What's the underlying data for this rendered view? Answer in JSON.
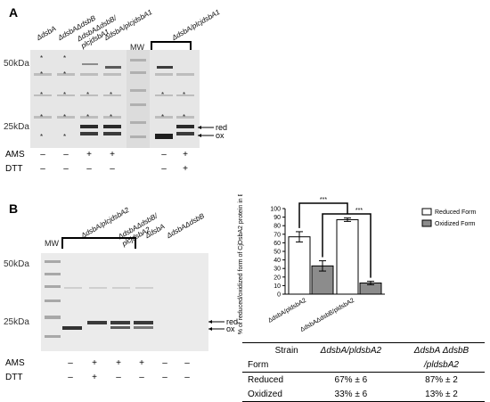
{
  "panel_a": {
    "letter": "A",
    "lanes": [
      "ΔdsbA",
      "ΔdsbAΔdsbB",
      "ΔdsbAΔdsbB/ plcjdsbA1",
      "ΔdsbA/plcjdsbA1",
      "ΔdsbA/plcjdsbA1"
    ],
    "mw_label": "MW",
    "sizes": [
      "50kDa",
      "25kDa"
    ],
    "band_labels": {
      "red": "red",
      "ox": "ox"
    },
    "ams_label": "AMS",
    "dtt_label": "DTT",
    "ams_signs": [
      "–",
      "–",
      "+",
      "+",
      "–",
      "+",
      "+"
    ],
    "dtt_signs": [
      "–",
      "–",
      "–",
      "–",
      "–",
      "–",
      "+"
    ]
  },
  "panel_b": {
    "letter": "B",
    "lanes": [
      "ΔdsbA/plcjdsbA2",
      "ΔdsbAΔdsbB/ plcjdsbA2",
      "ΔdsbA",
      "ΔdsbAΔdsbB"
    ],
    "mw_label": "MW",
    "sizes": [
      "50kDa",
      "25kDa"
    ],
    "band_labels": {
      "red": "red",
      "ox": "ox"
    },
    "ams_label": "AMS",
    "dtt_label": "DTT",
    "ams_signs": [
      "–",
      "+",
      "+",
      "+",
      "–",
      "–"
    ],
    "dtt_signs": [
      "–",
      "+",
      "–",
      "–",
      "–",
      "–"
    ]
  },
  "chart_data": {
    "type": "bar",
    "categories": [
      "ΔdsbA/pldsbA2",
      "ΔdsbAΔdsbB/pldsbA2"
    ],
    "series": [
      {
        "name": "Reduced Form",
        "values": [
          67,
          87
        ],
        "errors": [
          6,
          2
        ],
        "color": "#ffffff"
      },
      {
        "name": "Oxidized Form",
        "values": [
          33,
          13
        ],
        "errors": [
          6,
          2
        ],
        "color": "#8c8c8c"
      }
    ],
    "ylabel": "% of reduced/oxidized form of CjDsbA2 protein in E.coli strains",
    "ylim": [
      0,
      100
    ],
    "yticks": [
      "0",
      "10",
      "20",
      "30",
      "40",
      "50",
      "60",
      "70",
      "80",
      "90",
      "100"
    ],
    "annotations": [
      "***",
      "***"
    ],
    "legend_position": "top-right",
    "grid": false
  },
  "summary_table": {
    "strain_label": "Strain",
    "form_label": "Form",
    "col1": "ΔdsbA/pldsbA2",
    "col2_line1": "ΔdsbA ΔdsbB",
    "col2_line2": "/pldsbA2",
    "rows": [
      {
        "form": "Reduced",
        "v1": "67% ± 6",
        "v2": "87% ± 2"
      },
      {
        "form": "Oxidized",
        "v1": "33% ± 6",
        "v2": "13% ± 2"
      }
    ]
  }
}
